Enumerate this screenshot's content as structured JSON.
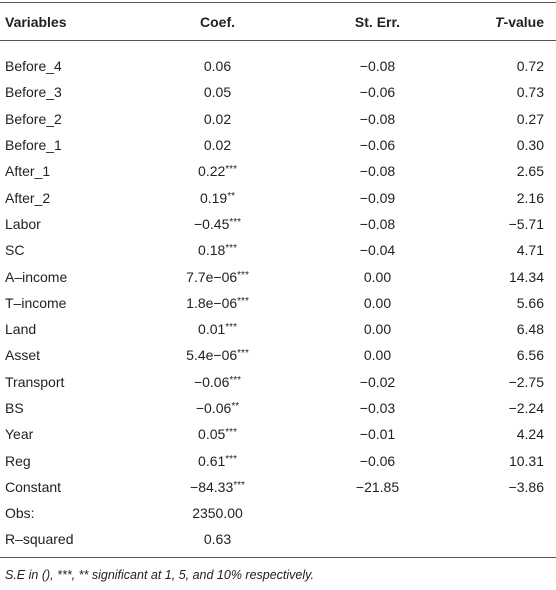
{
  "header": {
    "variables": "Variables",
    "coef": "Coef.",
    "se": "St. Err.",
    "t_italic": "T",
    "t_rest": "-value"
  },
  "rows": [
    {
      "variable": "Before_4",
      "coef": "0.06",
      "se": "−0.08",
      "t": "0.72"
    },
    {
      "variable": "Before_3",
      "coef": "0.05",
      "se": "−0.06",
      "t": "0.73"
    },
    {
      "variable": "Before_2",
      "coef": "0.02",
      "se": "−0.08",
      "t": "0.27"
    },
    {
      "variable": "Before_1",
      "coef": "0.02",
      "se": "−0.06",
      "t": "0.30"
    },
    {
      "variable": "After_1",
      "coef": "0.22",
      "sig": "***",
      "se": "−0.08",
      "t": "2.65"
    },
    {
      "variable": "After_2",
      "coef": "0.19",
      "sig": "**",
      "se": "−0.09",
      "t": "2.16"
    },
    {
      "variable": "Labor",
      "coef": "−0.45",
      "sig": "***",
      "se": "−0.08",
      "t": "−5.71"
    },
    {
      "variable": "SC",
      "coef": "0.18",
      "sig": "***",
      "se": "−0.04",
      "t": "4.71"
    },
    {
      "variable": "A–income",
      "coef": "7.7e−06",
      "sig": "***",
      "se": "0.00",
      "t": "14.34"
    },
    {
      "variable": "T–income",
      "coef": "1.8e−06",
      "sig": "***",
      "se": "0.00",
      "t": "5.66"
    },
    {
      "variable": "Land",
      "coef": "0.01",
      "sig": "***",
      "se": "0.00",
      "t": "6.48"
    },
    {
      "variable": "Asset",
      "coef": "5.4e−06",
      "sig": "***",
      "se": "0.00",
      "t": "6.56"
    },
    {
      "variable": "Transport",
      "coef": "−0.06",
      "sig": "***",
      "se": "−0.02",
      "t": "−2.75"
    },
    {
      "variable": "BS",
      "coef": "−0.06",
      "sig": "**",
      "se": "−0.03",
      "t": "−2.24"
    },
    {
      "variable": "Year",
      "coef": "0.05",
      "sig": "***",
      "se": "−0.01",
      "t": "4.24"
    },
    {
      "variable": "Reg",
      "coef": "0.61",
      "sig": "***",
      "se": "−0.06",
      "t": "10.31"
    },
    {
      "variable": "Constant",
      "coef": "−84.33",
      "sig": "***",
      "se": "−21.85",
      "t": "−3.86"
    },
    {
      "variable": "Obs:",
      "coef": "2350.00"
    },
    {
      "variable": "R–squared",
      "coef": "0.63"
    }
  ],
  "note": "S.E in (), ***, ** significant at 1, 5, and 10% respectively."
}
